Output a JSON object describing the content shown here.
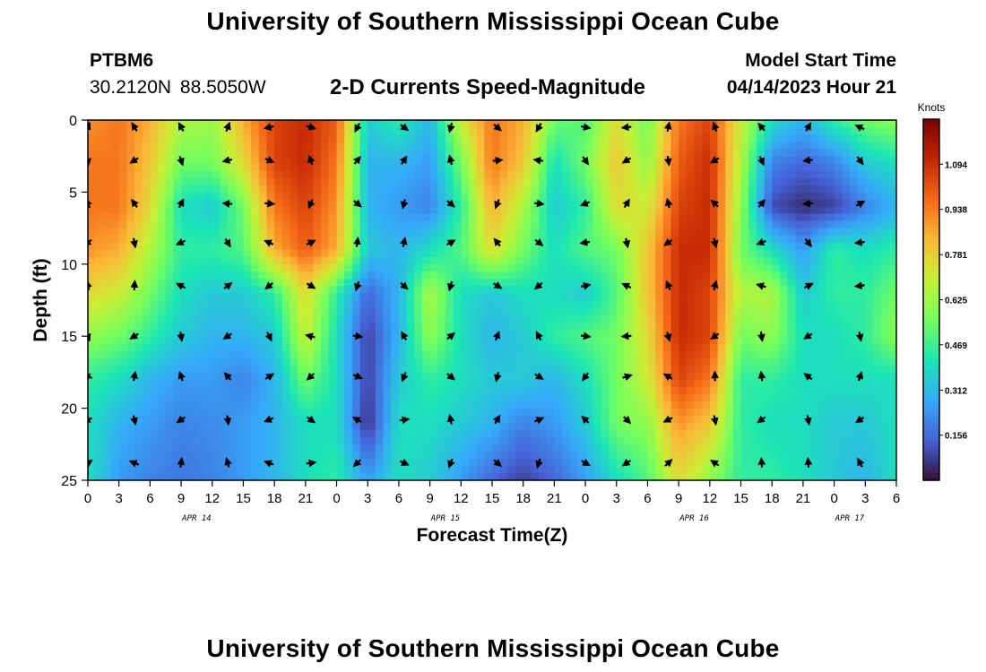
{
  "title": "University of Southern Mississippi Ocean Cube",
  "footer_title": "University of Southern Mississippi Ocean Cube",
  "station": {
    "id": "PTBM6",
    "coords": "30.2120N  88.5050W"
  },
  "product": "2-D Currents Speed-Magnitude",
  "model_start": {
    "label": "Model Start Time",
    "value": "04/14/2023 Hour 21"
  },
  "colors": {
    "colormap": [
      "#30123b",
      "#4662d8",
      "#35abf8",
      "#1be5b5",
      "#74fe5d",
      "#c9ef34",
      "#fbb938",
      "#f56918",
      "#c42503",
      "#7a0403"
    ]
  },
  "chart_data": {
    "type": "heatmap",
    "xlabel": "Forecast Time(Z)",
    "ylabel": "Depth (ft)",
    "xlim": [
      0,
      78
    ],
    "ylim": [
      0,
      25
    ],
    "y_inverted": true,
    "x_ticks": [
      0,
      3,
      6,
      9,
      12,
      15,
      18,
      21,
      24,
      27,
      30,
      33,
      36,
      39,
      42,
      45,
      48,
      51,
      54,
      57,
      60,
      63,
      66,
      69,
      72,
      75,
      78
    ],
    "x_tick_labels": [
      "0",
      "3",
      "6",
      "9",
      "12",
      "15",
      "18",
      "21",
      "0",
      "3",
      "6",
      "9",
      "12",
      "15",
      "18",
      "21",
      "0",
      "3",
      "6",
      "9",
      "12",
      "15",
      "18",
      "21",
      "0",
      "3",
      "6"
    ],
    "y_ticks": [
      0,
      5,
      10,
      15,
      20,
      25
    ],
    "date_labels": [
      {
        "text": "APR 14",
        "x": 10.5
      },
      {
        "text": "APR 15",
        "x": 34.5
      },
      {
        "text": "APR 16",
        "x": 58.5
      },
      {
        "text": "APR 17",
        "x": 73.5
      }
    ],
    "colorbar": {
      "label": "Knots",
      "range": [
        0,
        1.25
      ],
      "ticks": [
        0.156,
        0.312,
        0.469,
        0.625,
        0.781,
        0.938,
        1.094
      ],
      "tick_labels": [
        "0.156",
        "0.312",
        "0.469",
        "0.625",
        "0.781",
        "0.938",
        "1.094"
      ]
    },
    "vector_times": [
      0,
      4.5,
      9,
      13.5,
      17.5,
      21.5,
      26,
      30.5,
      35,
      39.5,
      43.5,
      48,
      52,
      56,
      60.5,
      65,
      69.5,
      74.5
    ],
    "vector_depths": [
      0.5,
      2.8,
      5.8,
      8.5,
      11.5,
      15,
      17.8,
      20.8,
      23.8
    ],
    "speed_grid": {
      "x": [
        0,
        3,
        6,
        9,
        12,
        15,
        18,
        21,
        24,
        27,
        30,
        33,
        36,
        39,
        42,
        45,
        48,
        51,
        54,
        57,
        60,
        63,
        66,
        69,
        72,
        75,
        78
      ],
      "depths": [
        0,
        3,
        6,
        9,
        12,
        15,
        18,
        21,
        25
      ],
      "values": [
        [
          0.9,
          0.95,
          0.85,
          0.65,
          0.62,
          0.85,
          1.05,
          1.1,
          1.0,
          0.35,
          0.45,
          0.3,
          0.7,
          0.95,
          0.85,
          0.55,
          0.5,
          0.75,
          0.55,
          0.95,
          1.05,
          0.7,
          0.4,
          0.3,
          0.45,
          0.55,
          0.6
        ],
        [
          0.95,
          0.95,
          0.8,
          0.55,
          0.55,
          0.75,
          1.05,
          1.1,
          0.95,
          0.3,
          0.3,
          0.25,
          0.55,
          0.95,
          0.8,
          0.4,
          0.55,
          0.8,
          0.6,
          1.0,
          1.1,
          0.65,
          0.2,
          0.15,
          0.2,
          0.35,
          0.4
        ],
        [
          0.95,
          0.95,
          0.75,
          0.4,
          0.35,
          0.55,
          0.95,
          1.05,
          0.9,
          0.3,
          0.25,
          0.2,
          0.45,
          0.85,
          0.65,
          0.35,
          0.45,
          0.75,
          0.7,
          1.05,
          1.1,
          0.6,
          0.1,
          0.05,
          0.08,
          0.2,
          0.3
        ],
        [
          0.9,
          0.85,
          0.65,
          0.45,
          0.45,
          0.5,
          0.85,
          1.0,
          0.85,
          0.35,
          0.3,
          0.4,
          0.5,
          0.75,
          0.55,
          0.4,
          0.5,
          0.55,
          0.8,
          1.1,
          1.1,
          0.55,
          0.4,
          0.25,
          0.45,
          0.4,
          0.45
        ],
        [
          0.75,
          0.7,
          0.55,
          0.4,
          0.35,
          0.35,
          0.45,
          0.75,
          0.45,
          0.15,
          0.3,
          0.65,
          0.4,
          0.35,
          0.4,
          0.4,
          0.35,
          0.5,
          0.8,
          1.1,
          1.05,
          0.65,
          0.65,
          0.35,
          0.45,
          0.45,
          0.55
        ],
        [
          0.6,
          0.55,
          0.45,
          0.35,
          0.3,
          0.3,
          0.35,
          0.7,
          0.4,
          0.08,
          0.3,
          0.6,
          0.4,
          0.3,
          0.35,
          0.45,
          0.5,
          0.55,
          0.75,
          1.1,
          1.05,
          0.55,
          0.6,
          0.4,
          0.4,
          0.45,
          0.6
        ],
        [
          0.45,
          0.4,
          0.3,
          0.25,
          0.25,
          0.2,
          0.3,
          0.55,
          0.4,
          0.08,
          0.35,
          0.45,
          0.4,
          0.35,
          0.35,
          0.3,
          0.4,
          0.55,
          0.7,
          1.05,
          0.95,
          0.45,
          0.45,
          0.4,
          0.4,
          0.4,
          0.4
        ],
        [
          0.4,
          0.3,
          0.25,
          0.2,
          0.22,
          0.25,
          0.3,
          0.4,
          0.4,
          0.05,
          0.4,
          0.4,
          0.35,
          0.3,
          0.2,
          0.25,
          0.35,
          0.55,
          0.6,
          0.9,
          0.8,
          0.45,
          0.4,
          0.4,
          0.35,
          0.35,
          0.4
        ],
        [
          0.4,
          0.25,
          0.2,
          0.18,
          0.2,
          0.25,
          0.3,
          0.4,
          0.45,
          0.25,
          0.4,
          0.35,
          0.25,
          0.15,
          0.08,
          0.15,
          0.25,
          0.4,
          0.5,
          0.75,
          0.6,
          0.45,
          0.45,
          0.4,
          0.35,
          0.3,
          0.4
        ]
      ]
    }
  }
}
